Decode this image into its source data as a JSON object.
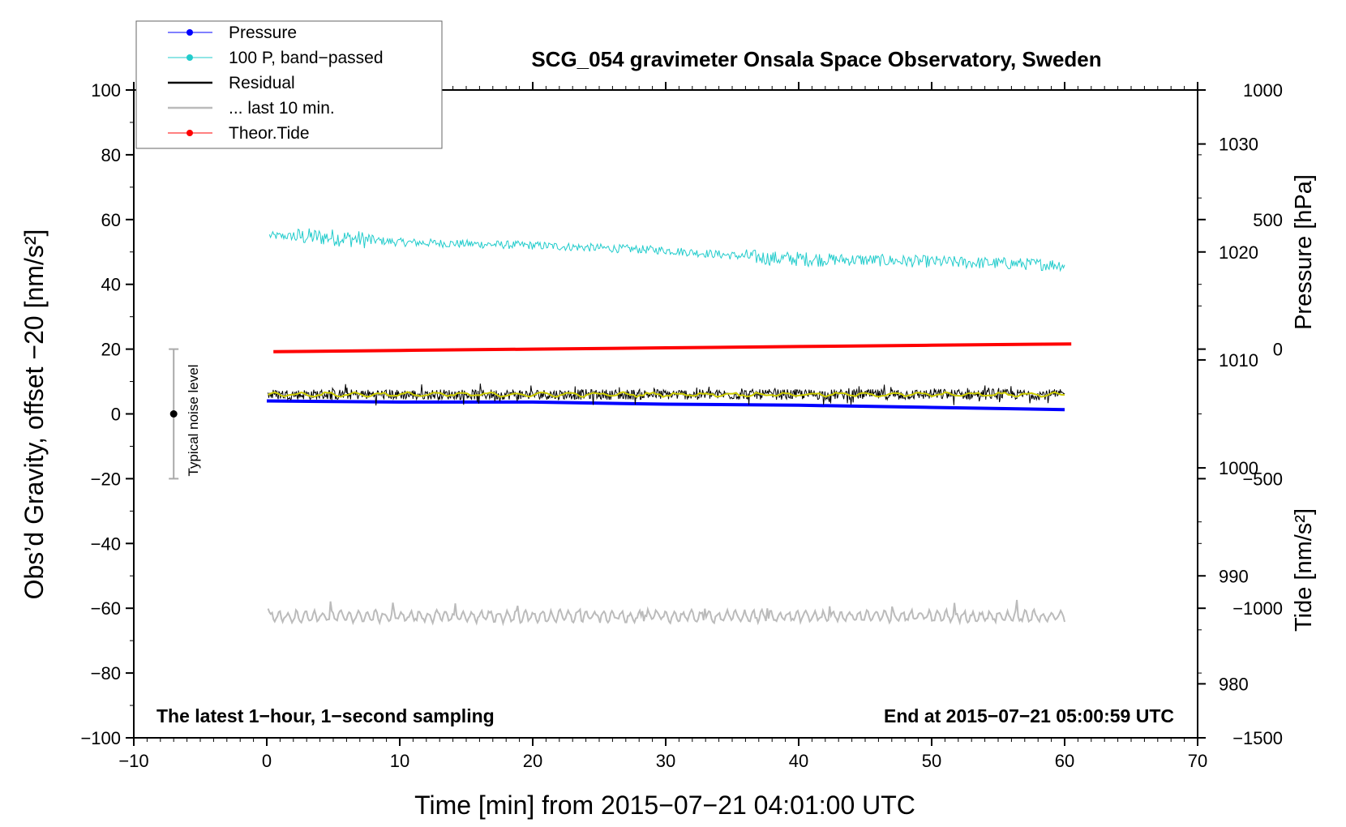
{
  "chart_data": {
    "type": "line",
    "title": "SCG_054 gravimeter Onsala Space Observatory, Sweden",
    "xlabel": "Time [min] from 2015−07−21 04:01:00 UTC",
    "ylabel_left": "Obs’d Gravity, offset −20 [nm/s²]",
    "ylabel_right_top": "Pressure [hPa]",
    "ylabel_right_bottom": "Tide [nm/s²]",
    "xlim": [
      -10,
      70
    ],
    "ylim": [
      -100,
      100
    ],
    "pressure_axis_ylim": [
      975,
      1035
    ],
    "tide_axis_ylim": [
      -1500,
      1000
    ],
    "x_ticks": [
      "−10",
      "0",
      "10",
      "20",
      "30",
      "40",
      "50",
      "60",
      "70"
    ],
    "y_ticks_left": [
      "100",
      "80",
      "60",
      "40",
      "20",
      "0",
      "−20",
      "−40",
      "−60",
      "−80",
      "−100"
    ],
    "y_ticks_pressure": [
      "1030",
      "1020",
      "1010",
      "1000",
      "990",
      "980"
    ],
    "y_ticks_tide": [
      "1000",
      "500",
      "0",
      "−500",
      "−1000",
      "−1500"
    ],
    "annotations": {
      "bottom_left": "The latest 1−hour, 1−second sampling",
      "bottom_right": "End at 2015−07−21 05:00:59 UTC",
      "noise": "Typical noise level"
    },
    "noise_bar": {
      "x": -7,
      "center": 0,
      "half_range": 20
    },
    "grid": false,
    "legend_position": "top-left",
    "series": [
      {
        "name": "Pressure",
        "color": "#0000ff",
        "axis": "pressure",
        "x": [
          0,
          10,
          20,
          30,
          40,
          50,
          60
        ],
        "values": [
          1006.2,
          1006.1,
          1006.1,
          1005.9,
          1005.8,
          1005.6,
          1005.4
        ]
      },
      {
        "name": "100 P, band−passed",
        "color": "#22cccc",
        "axis": "left",
        "x": [
          0,
          5,
          10,
          20,
          30,
          38,
          45,
          50,
          55,
          60
        ],
        "values": [
          55,
          54.5,
          53,
          52,
          50.5,
          48,
          47.5,
          47,
          46.5,
          46
        ]
      },
      {
        "name": "Residual",
        "color": "#000000",
        "axis": "left",
        "x": [
          0,
          10,
          20,
          30,
          40,
          50,
          60
        ],
        "values": [
          6,
          6,
          6,
          6,
          6,
          6,
          6
        ]
      },
      {
        "name": "... last 10 min.",
        "color": "#bbbbbb",
        "axis": "left",
        "x": [
          0,
          10,
          20,
          30,
          40,
          50,
          60
        ],
        "values": [
          -62.5,
          -62.5,
          -62.5,
          -62.5,
          -62.5,
          -62.5,
          -62.5
        ]
      },
      {
        "name": "Theor.Tide",
        "color": "#ff0000",
        "axis": "tide",
        "x": [
          0.5,
          10,
          20,
          30,
          40,
          50,
          60.5
        ],
        "values": [
          -10,
          -5,
          0,
          5,
          10,
          15,
          20
        ]
      }
    ],
    "smoothed_residual_color": "#cccc00"
  }
}
